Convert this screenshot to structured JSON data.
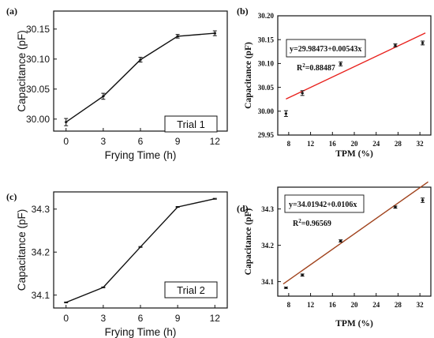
{
  "figure": {
    "background": "#ffffff",
    "axis_color": "#111111"
  },
  "chart_data": [
    {
      "id": "a",
      "panel_label": "(a)",
      "type": "line",
      "style": "sans",
      "line_color": "#111111",
      "xlabel": "Frying Time (h)",
      "ylabel": "Capacitance (pF)",
      "xlim": [
        -1,
        13
      ],
      "ylim": [
        29.98,
        30.18
      ],
      "xticks": [
        0,
        3,
        6,
        9,
        12
      ],
      "yticks": [
        30.0,
        30.05,
        30.1,
        30.15
      ],
      "ytick_decimals": 2,
      "series": [
        {
          "x": [
            0,
            3,
            6,
            9,
            12
          ],
          "y": [
            29.995,
            30.038,
            30.099,
            30.138,
            30.143
          ],
          "err": [
            0.006,
            0.005,
            0.004,
            0.003,
            0.004
          ],
          "markers": true
        }
      ],
      "annotation": "Trial 1"
    },
    {
      "id": "b",
      "panel_label": "(b)",
      "type": "scatter",
      "style": "serif",
      "line_color": "#e8211d",
      "xlabel": "TPM (%)",
      "ylabel": "Capacitance (pF)",
      "xlim": [
        6,
        34
      ],
      "ylim": [
        29.95,
        30.2
      ],
      "xticks": [
        8,
        12,
        16,
        20,
        24,
        28,
        32
      ],
      "yticks": [
        29.95,
        30.0,
        30.05,
        30.1,
        30.15,
        30.2
      ],
      "ytick_decimals": 2,
      "series": [
        {
          "x": [
            7.5,
            10.5,
            17.5,
            27.5,
            32.5
          ],
          "y": [
            29.995,
            30.038,
            30.099,
            30.138,
            30.143
          ],
          "err": [
            0.006,
            0.005,
            0.004,
            0.003,
            0.004
          ],
          "markers": true
        }
      ],
      "fit": {
        "intercept": 29.98473,
        "slope": 0.00543,
        "x_range": [
          7.5,
          33
        ]
      },
      "equation": "y=29.98473+0.00543x",
      "r2_label": "R",
      "r2_sup": "2",
      "r2_value": "=0.88487"
    },
    {
      "id": "c",
      "panel_label": "(c)",
      "type": "line",
      "style": "sans",
      "line_color": "#111111",
      "xlabel": "Frying Time (h)",
      "ylabel": "Capacitance (pF)",
      "xlim": [
        -1,
        13
      ],
      "ylim": [
        34.07,
        34.34
      ],
      "xticks": [
        0,
        3,
        6,
        9,
        12
      ],
      "yticks": [
        34.1,
        34.2,
        34.3
      ],
      "ytick_decimals": 1,
      "series": [
        {
          "x": [
            0,
            3,
            6,
            9,
            12
          ],
          "y": [
            34.083,
            34.118,
            34.212,
            34.305,
            34.324
          ],
          "err": [
            0.001,
            0.001,
            0.001,
            0.001,
            0.001
          ],
          "markers": false
        }
      ],
      "annotation": "Trial 2"
    },
    {
      "id": "d",
      "panel_label": "(d)",
      "type": "scatter",
      "style": "serif",
      "line_color": "#a0421c",
      "xlabel": "TPM (%)",
      "ylabel": "Capacitance (pF)",
      "xlim": [
        6,
        34
      ],
      "ylim": [
        34.06,
        34.36
      ],
      "xticks": [
        8,
        12,
        16,
        20,
        24,
        28,
        32
      ],
      "yticks": [
        34.1,
        34.2,
        34.3
      ],
      "ytick_decimals": 1,
      "series": [
        {
          "x": [
            7.5,
            10.5,
            17.5,
            27.5,
            32.5
          ],
          "y": [
            34.083,
            34.118,
            34.212,
            34.305,
            34.324
          ],
          "err": [
            0.002,
            0.003,
            0.003,
            0.003,
            0.006
          ],
          "markers": true
        }
      ],
      "fit": {
        "intercept": 34.01942,
        "slope": 0.0106,
        "x_range": [
          7.0,
          33.5
        ]
      },
      "equation": "y=34.01942+0.0106x",
      "r2_label": "R",
      "r2_sup": "2",
      "r2_value": "=0.96569"
    }
  ]
}
